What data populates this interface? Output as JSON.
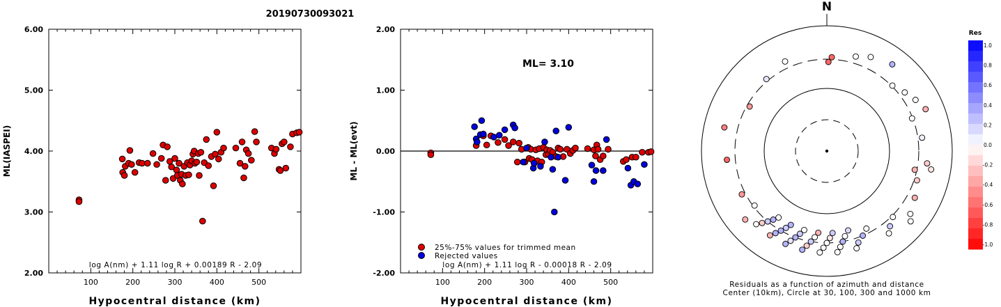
{
  "title": "20190730093021",
  "chart_data": [
    {
      "type": "scatter",
      "panel": "left",
      "ylabel": "ML(IASPEI)",
      "xlabel": "Hypocentral distance (km)",
      "formula": "log A(nm) + 1.11 log R + 0.00189 R - 2.09",
      "xlim": [
        0,
        600
      ],
      "ylim": [
        2.0,
        6.0
      ],
      "xticks": [
        "100",
        "200",
        "300",
        "400",
        "500"
      ],
      "yticks": [
        "2.00",
        "3.00",
        "4.00",
        "5.00",
        "6.00"
      ],
      "points": [
        [
          72,
          3.2
        ],
        [
          72,
          3.17
        ],
        [
          175,
          3.87
        ],
        [
          176,
          3.65
        ],
        [
          180,
          3.6
        ],
        [
          182,
          3.75
        ],
        [
          190,
          3.8
        ],
        [
          193,
          4.01
        ],
        [
          197,
          3.78
        ],
        [
          205,
          3.65
        ],
        [
          215,
          3.81
        ],
        [
          222,
          3.8
        ],
        [
          235,
          3.8
        ],
        [
          248,
          3.96
        ],
        [
          257,
          3.78
        ],
        [
          268,
          3.88
        ],
        [
          272,
          4.1
        ],
        [
          278,
          3.52
        ],
        [
          282,
          4.07
        ],
        [
          288,
          3.83
        ],
        [
          292,
          3.74
        ],
        [
          296,
          3.55
        ],
        [
          300,
          3.88
        ],
        [
          304,
          3.69
        ],
        [
          306,
          3.6
        ],
        [
          310,
          3.8
        ],
        [
          313,
          3.52
        ],
        [
          316,
          3.62
        ],
        [
          318,
          3.46
        ],
        [
          322,
          3.75
        ],
        [
          326,
          3.6
        ],
        [
          330,
          3.81
        ],
        [
          333,
          3.61
        ],
        [
          336,
          3.77
        ],
        [
          340,
          3.84
        ],
        [
          343,
          3.95
        ],
        [
          346,
          4.0
        ],
        [
          348,
          3.8
        ],
        [
          352,
          3.82
        ],
        [
          356,
          3.96
        ],
        [
          358,
          3.6
        ],
        [
          362,
          3.98
        ],
        [
          366,
          2.85
        ],
        [
          370,
          3.81
        ],
        [
          375,
          4.19
        ],
        [
          380,
          3.76
        ],
        [
          387,
          3.91
        ],
        [
          392,
          3.43
        ],
        [
          396,
          3.95
        ],
        [
          400,
          4.31
        ],
        [
          404,
          3.87
        ],
        [
          410,
          3.98
        ],
        [
          416,
          4.05
        ],
        [
          445,
          4.05
        ],
        [
          455,
          3.8
        ],
        [
          460,
          4.15
        ],
        [
          464,
          3.56
        ],
        [
          467,
          3.75
        ],
        [
          470,
          4.02
        ],
        [
          475,
          3.96
        ],
        [
          482,
          3.85
        ],
        [
          490,
          4.32
        ],
        [
          494,
          4.15
        ],
        [
          530,
          4.05
        ],
        [
          537,
          3.96
        ],
        [
          541,
          4.03
        ],
        [
          548,
          3.7
        ],
        [
          551,
          3.68
        ],
        [
          555,
          4.12
        ],
        [
          560,
          4.15
        ],
        [
          564,
          3.72
        ],
        [
          575,
          4.07
        ],
        [
          580,
          4.28
        ],
        [
          590,
          4.3
        ],
        [
          596,
          4.31
        ]
      ]
    },
    {
      "type": "scatter",
      "panel": "middle",
      "ylabel": "ML - ML(evt)",
      "xlabel": "Hypocentral distance (km)",
      "annotation": "ML= 3.10",
      "formula": "log A(nm) + 1.11 log R - 0.00018 R - 2.09",
      "xlim": [
        0,
        600
      ],
      "ylim": [
        -2.0,
        2.0
      ],
      "xticks": [
        "100",
        "200",
        "300",
        "400",
        "500"
      ],
      "yticks": [
        "-2.00",
        "-1.00",
        "0.00",
        "1.00",
        "2.00"
      ],
      "legend": [
        "25%-75% values for trimmed mean",
        "Rejected values"
      ],
      "series": [
        {
          "color": "#dd0000",
          "points": [
            [
              72,
              -0.03
            ],
            [
              72,
              -0.06
            ],
            [
              180,
              0.09
            ],
            [
              197,
              0.25
            ],
            [
              205,
              0.1
            ],
            [
              215,
              0.25
            ],
            [
              232,
              0.14
            ],
            [
              248,
              0.19
            ],
            [
              257,
              0.09
            ],
            [
              268,
              0.15
            ],
            [
              278,
              -0.18
            ],
            [
              282,
              0.13
            ],
            [
              288,
              0.03
            ],
            [
              296,
              -0.18
            ],
            [
              304,
              0.06
            ],
            [
              306,
              -0.12
            ],
            [
              310,
              0.03
            ],
            [
              313,
              -0.14
            ],
            [
              318,
              -0.2
            ],
            [
              322,
              0.02
            ],
            [
              326,
              -0.16
            ],
            [
              330,
              0.04
            ],
            [
              336,
              -0.18
            ],
            [
              340,
              0.06
            ],
            [
              346,
              -0.06
            ],
            [
              348,
              0.02
            ],
            [
              352,
              -0.05
            ],
            [
              356,
              0.01
            ],
            [
              362,
              -0.02
            ],
            [
              370,
              -0.09
            ],
            [
              375,
              0.05
            ],
            [
              380,
              0.03
            ],
            [
              387,
              -0.09
            ],
            [
              396,
              0.03
            ],
            [
              404,
              -0.04
            ],
            [
              410,
              0.01
            ],
            [
              416,
              0.05
            ],
            [
              445,
              0.04
            ],
            [
              460,
              0.02
            ],
            [
              464,
              -0.08
            ],
            [
              467,
              0.1
            ],
            [
              470,
              0.03
            ],
            [
              475,
              -0.14
            ],
            [
              482,
              -0.08
            ],
            [
              494,
              0.03
            ],
            [
              530,
              -0.17
            ],
            [
              537,
              -0.14
            ],
            [
              551,
              -0.1
            ],
            [
              560,
              -0.1
            ],
            [
              575,
              -0.02
            ],
            [
              590,
              -0.02
            ],
            [
              596,
              -0.01
            ]
          ]
        },
        {
          "color": "#0000dd",
          "points": [
            [
              176,
              0.4
            ],
            [
              180,
              0.2
            ],
            [
              182,
              0.15
            ],
            [
              190,
              0.27
            ],
            [
              193,
              0.5
            ],
            [
              197,
              0.28
            ],
            [
              222,
              0.23
            ],
            [
              235,
              0.26
            ],
            [
              248,
              0.35
            ],
            [
              268,
              0.43
            ],
            [
              272,
              0.38
            ],
            [
              292,
              -0.18
            ],
            [
              300,
              0.05
            ],
            [
              316,
              -0.28
            ],
            [
              318,
              -0.2
            ],
            [
              333,
              -0.25
            ],
            [
              343,
              0.15
            ],
            [
              358,
              -0.1
            ],
            [
              362,
              -0.3
            ],
            [
              366,
              -1.0
            ],
            [
              370,
              0.33
            ],
            [
              375,
              -0.1
            ],
            [
              392,
              -0.48
            ],
            [
              400,
              0.39
            ],
            [
              455,
              -0.23
            ],
            [
              460,
              -0.5
            ],
            [
              465,
              -0.32
            ],
            [
              482,
              -0.32
            ],
            [
              490,
              0.19
            ],
            [
              541,
              -0.28
            ],
            [
              548,
              -0.56
            ],
            [
              555,
              -0.5
            ],
            [
              564,
              -0.54
            ],
            [
              580,
              -0.22
            ]
          ]
        }
      ]
    },
    {
      "type": "scatter",
      "panel": "polar",
      "north_label": "N",
      "caption_line1": "Residuals as a function of azimuth and distance",
      "caption_line2": "Center (10km), Circle at 30, 100, 300 and 1000 km",
      "colorbar_title": "Res",
      "colorbar_ticks": [
        "1.0",
        "0.8",
        "0.6",
        "0.4",
        "0.2",
        "0.0",
        "-0.2",
        "-0.4",
        "-0.6",
        "-0.8",
        "-1.0"
      ],
      "points": [
        [
          1,
          -0.6
        ],
        [
          3,
          -0.6
        ],
        [
          17,
          0.0
        ],
        [
          25,
          0.0
        ],
        [
          37,
          0.3
        ],
        [
          45,
          0.0
        ],
        [
          53,
          0.0
        ],
        [
          60,
          0.0
        ],
        [
          67,
          -0.3
        ],
        [
          69,
          0.0
        ],
        [
          82,
          0.05
        ],
        [
          97,
          -0.2
        ],
        [
          100,
          -0.1
        ],
        [
          102,
          -0.3
        ],
        [
          108,
          -0.2
        ],
        [
          118,
          -0.3
        ],
        [
          127,
          0.0
        ],
        [
          130,
          0.0
        ],
        [
          135,
          0.0
        ],
        [
          140,
          0.2
        ],
        [
          143,
          0.0
        ],
        [
          153,
          0.0
        ],
        [
          157,
          0.3
        ],
        [
          161,
          0.2
        ],
        [
          163,
          0.0
        ],
        [
          165,
          0.15
        ],
        [
          168,
          0.0
        ],
        [
          170,
          0.3
        ],
        [
          172,
          0.0
        ],
        [
          174,
          0.0
        ],
        [
          176,
          0.2
        ],
        [
          178,
          -0.1
        ],
        [
          180,
          0.0
        ],
        [
          182,
          0.0
        ],
        [
          184,
          0.0
        ],
        [
          186,
          -0.3
        ],
        [
          188,
          0.0
        ],
        [
          190,
          0.2
        ],
        [
          192,
          -0.2
        ],
        [
          194,
          0.3
        ],
        [
          196,
          0.0
        ],
        [
          198,
          0.2
        ],
        [
          200,
          0.3
        ],
        [
          202,
          0.1
        ],
        [
          204,
          0.3
        ],
        [
          206,
          0.3
        ],
        [
          208,
          0.2
        ],
        [
          210,
          0.3
        ],
        [
          212,
          0.3
        ],
        [
          214,
          -0.3
        ],
        [
          216,
          0.0
        ],
        [
          218,
          0.3
        ],
        [
          220,
          0.2
        ],
        [
          222,
          -0.2
        ],
        [
          224,
          0.0
        ],
        [
          230,
          -0.3
        ],
        [
          233,
          0.0
        ],
        [
          243,
          -0.4
        ],
        [
          265,
          -0.6
        ],
        [
          283,
          -0.5
        ],
        [
          300,
          -0.4
        ],
        [
          320,
          0.1
        ],
        [
          335,
          0.0
        ]
      ]
    }
  ]
}
